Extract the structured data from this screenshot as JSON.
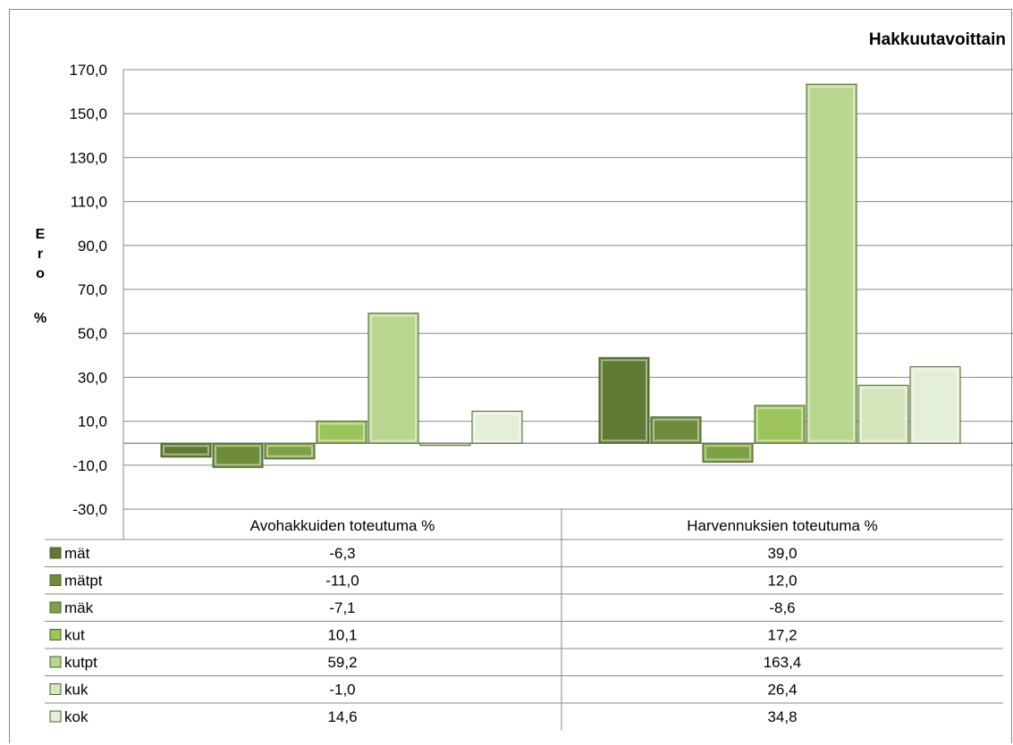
{
  "chart_data": {
    "type": "bar",
    "title": "Hakkuutavoittain",
    "ylabel": "Ero %",
    "ylim": [
      -30,
      170
    ],
    "yticks": [
      "-30,0",
      "-10,0",
      "10,0",
      "30,0",
      "50,0",
      "70,0",
      "90,0",
      "110,0",
      "130,0",
      "150,0",
      "170,0"
    ],
    "categories": [
      "Avohakkuiden toteutuma %",
      "Harvennuksien toteutuma %"
    ],
    "series": [
      {
        "name": "mät",
        "color": "#5f7a34",
        "values": [
          -6.3,
          39.0
        ],
        "labels": [
          "-6,3",
          "39,0"
        ]
      },
      {
        "name": "mätpt",
        "color": "#6e8c3c",
        "values": [
          -11.0,
          12.0
        ],
        "labels": [
          "-11,0",
          "12,0"
        ]
      },
      {
        "name": "mäk",
        "color": "#7ea046",
        "values": [
          -7.1,
          -8.6
        ],
        "labels": [
          "-7,1",
          "-8,6"
        ]
      },
      {
        "name": "kut",
        "color": "#9cc45a",
        "values": [
          10.1,
          17.2
        ],
        "labels": [
          "10,1",
          "17,2"
        ]
      },
      {
        "name": "kutpt",
        "color": "#b8d690",
        "values": [
          59.2,
          163.4
        ],
        "labels": [
          "59,2",
          "163,4"
        ]
      },
      {
        "name": "kuk",
        "color": "#d5e6bd",
        "values": [
          -1.0,
          26.4
        ],
        "labels": [
          "-1,0",
          "26,4"
        ]
      },
      {
        "name": "kok",
        "color": "#e3efd8",
        "values": [
          14.6,
          34.8
        ],
        "labels": [
          "14,6",
          "34,8"
        ]
      }
    ],
    "grid": true,
    "legend": "data-table"
  }
}
